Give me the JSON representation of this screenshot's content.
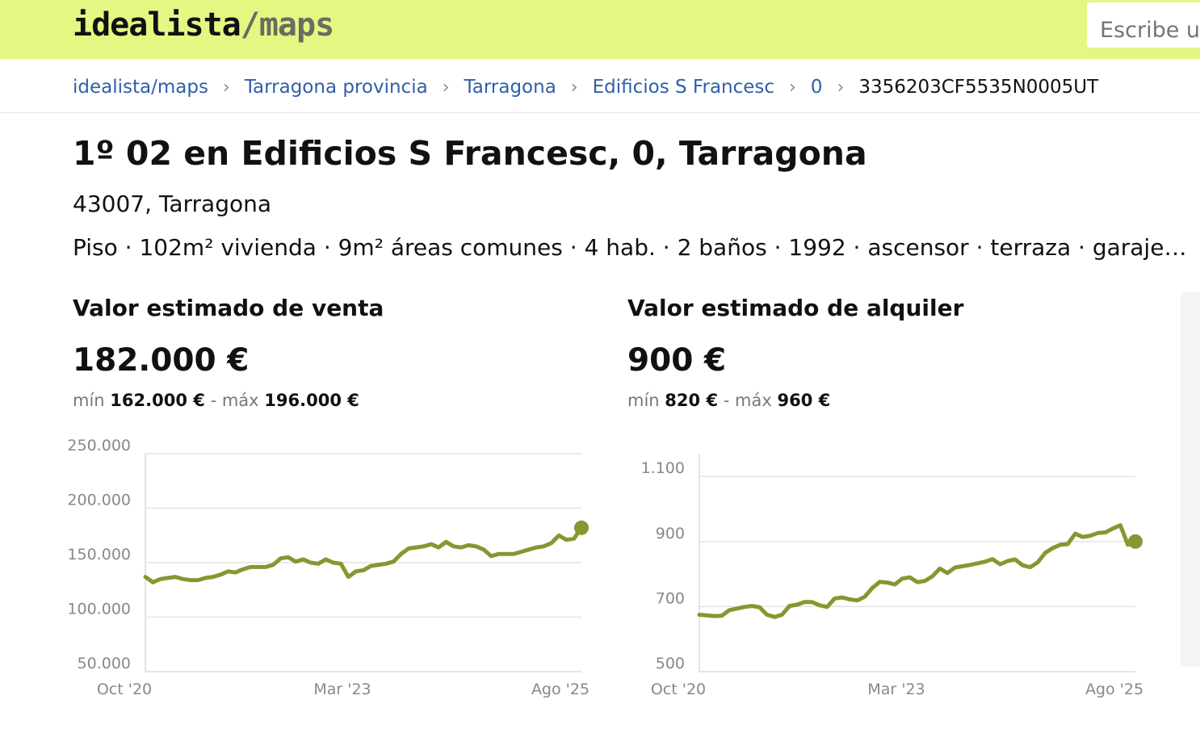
{
  "header": {
    "logo_main": "idealista",
    "logo_sub": "/maps",
    "search_placeholder": "Escribe una dirección"
  },
  "breadcrumb": [
    {
      "label": "idealista/maps",
      "link": true
    },
    {
      "label": "Tarragona provincia",
      "link": true
    },
    {
      "label": "Tarragona",
      "link": true
    },
    {
      "label": "Edificios S Francesc",
      "link": true
    },
    {
      "label": "0",
      "link": true
    },
    {
      "label": "3356203CF5535N0005UT",
      "link": false
    }
  ],
  "property": {
    "title": "1º 02 en Edificios S Francesc, 0, Tarragona",
    "address": "43007, Tarragona",
    "features": "Piso · 102m² vivienda · 9m² áreas comunes · 4 hab. · 2 baños · 1992 · ascensor · terraza · garaje…"
  },
  "sale": {
    "heading": "Valor estimado de venta",
    "value": "182.000 €",
    "min_label": "mín",
    "min_value": "162.000 €",
    "dash": "-",
    "max_label": "máx",
    "max_value": "196.000 €"
  },
  "rent": {
    "heading": "Valor estimado de alquiler",
    "value": "900 €",
    "min_label": "mín",
    "min_value": "820 €",
    "dash": "-",
    "max_label": "máx",
    "max_value": "960 €"
  },
  "colors": {
    "line": "#86972f",
    "topbar": "#e4f783",
    "link": "#2f5fa8"
  },
  "chart_data": [
    {
      "type": "line",
      "title": "Valor estimado de venta",
      "x_ticks": [
        "Oct '20",
        "Mar '23",
        "Ago '25"
      ],
      "x_tick_positions": [
        0,
        29,
        58
      ],
      "y_ticks": [
        "50.000",
        "100.000",
        "150.000",
        "200.000",
        "250.000"
      ],
      "y_tick_values": [
        50000,
        100000,
        150000,
        200000,
        250000
      ],
      "ylim": [
        50000,
        250000
      ],
      "grid": true,
      "series": [
        {
          "values": [
            137000,
            132000,
            135000,
            136000,
            137000,
            135000,
            134000,
            134000,
            136000,
            137000,
            139000,
            142000,
            141000,
            144000,
            146000,
            146000,
            146000,
            148000,
            154000,
            155000,
            151000,
            153000,
            150000,
            149000,
            153000,
            150000,
            149000,
            137000,
            142000,
            143000,
            147000,
            148000,
            149000,
            151000,
            158000,
            163000,
            164000,
            165000,
            167000,
            164000,
            169000,
            165000,
            164000,
            166000,
            165000,
            162000,
            156000,
            158000,
            158000,
            158000,
            160000,
            162000,
            164000,
            165000,
            168000,
            175000,
            171000,
            172000,
            182000
          ],
          "end_marker": 182000
        }
      ]
    },
    {
      "type": "line",
      "title": "Valor estimado de alquiler",
      "x_ticks": [
        "Oct '20",
        "Mar '23",
        "Ago '25"
      ],
      "x_tick_positions": [
        0,
        29,
        58
      ],
      "y_ticks": [
        "500",
        "700",
        "900",
        "1.100"
      ],
      "y_tick_values": [
        500,
        700,
        900,
        1100
      ],
      "ylim": [
        500,
        1170
      ],
      "grid": true,
      "series": [
        {
          "values": [
            675,
            673,
            671,
            672,
            689,
            694,
            699,
            702,
            698,
            675,
            668,
            675,
            702,
            706,
            714,
            714,
            704,
            699,
            725,
            728,
            722,
            719,
            730,
            757,
            776,
            774,
            768,
            786,
            790,
            775,
            779,
            793,
            817,
            803,
            820,
            824,
            828,
            833,
            838,
            846,
            830,
            840,
            845,
            827,
            821,
            836,
            865,
            880,
            890,
            892,
            924,
            914,
            918,
            926,
            928,
            940,
            950,
            890,
            900
          ],
          "end_marker": 900
        }
      ]
    }
  ]
}
